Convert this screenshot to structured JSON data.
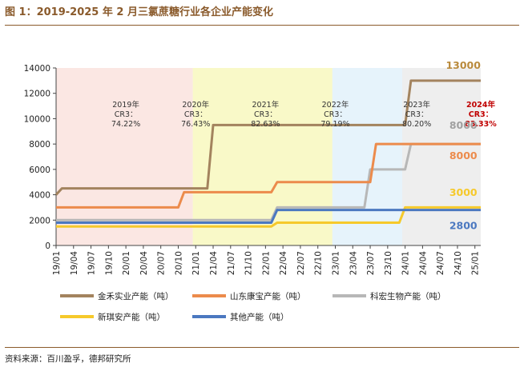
{
  "figure": {
    "title": "图 1：2019-2025 年 2 月三氯蔗糖行业各企业产能变化",
    "source": "资料来源：百川盈孚，德邦研究所"
  },
  "chart_data": {
    "type": "line",
    "x": [
      "19/01",
      "19/02",
      "19/03",
      "19/04",
      "19/05",
      "19/06",
      "19/07",
      "19/08",
      "19/09",
      "19/10",
      "19/11",
      "19/12",
      "20/01",
      "20/02",
      "20/03",
      "20/04",
      "20/05",
      "20/06",
      "20/07",
      "20/08",
      "20/09",
      "20/10",
      "20/11",
      "20/12",
      "21/01",
      "21/02",
      "21/03",
      "21/04",
      "21/05",
      "21/06",
      "21/07",
      "21/08",
      "21/09",
      "21/10",
      "21/11",
      "21/12",
      "22/01",
      "22/02",
      "22/03",
      "22/04",
      "22/05",
      "22/06",
      "22/07",
      "22/08",
      "22/09",
      "22/10",
      "22/11",
      "22/12",
      "23/01",
      "23/02",
      "23/03",
      "23/04",
      "23/05",
      "23/06",
      "23/07",
      "23/08",
      "23/09",
      "23/10",
      "23/11",
      "23/12",
      "24/01",
      "24/02",
      "24/03",
      "24/04",
      "24/05",
      "24/06",
      "24/07",
      "24/08",
      "24/09",
      "24/10",
      "24/11",
      "24/12",
      "25/01",
      "25/02"
    ],
    "xticklabels": [
      "19/01",
      "19/04",
      "19/07",
      "19/10",
      "20/01",
      "20/04",
      "20/07",
      "20/10",
      "21/01",
      "21/04",
      "21/07",
      "21/10",
      "22/01",
      "22/04",
      "22/07",
      "22/10",
      "23/01",
      "23/04",
      "23/07",
      "23/10",
      "24/01",
      "24/04",
      "24/07",
      "24/10",
      "25/01"
    ],
    "ylim": [
      0,
      14000
    ],
    "yticks": [
      0,
      2000,
      4000,
      6000,
      8000,
      10000,
      12000,
      14000
    ],
    "yticklabels": [
      "0",
      "2000",
      "4000",
      "6000",
      "8000",
      "10000",
      "12000",
      "14000"
    ],
    "grid": false,
    "legend_position": "bottom",
    "series": [
      {
        "name": "金禾实业产能（吨）",
        "color": "#a3835e",
        "values": [
          4000,
          4500,
          4500,
          4500,
          4500,
          4500,
          4500,
          4500,
          4500,
          4500,
          4500,
          4500,
          4500,
          4500,
          4500,
          4500,
          4500,
          4500,
          4500,
          4500,
          4500,
          4500,
          4500,
          4500,
          4500,
          4500,
          4500,
          9500,
          9500,
          9500,
          9500,
          9500,
          9500,
          9500,
          9500,
          9500,
          9500,
          9500,
          9500,
          9500,
          9500,
          9500,
          9500,
          9500,
          9500,
          9500,
          9500,
          9500,
          9500,
          9500,
          9500,
          9500,
          9500,
          9500,
          9500,
          9500,
          9500,
          9500,
          9500,
          9500,
          9500,
          13000,
          13000,
          13000,
          13000,
          13000,
          13000,
          13000,
          13000,
          13000,
          13000,
          13000,
          13000,
          13000
        ]
      },
      {
        "name": "山东康宝产能（吨）",
        "color": "#ec8b4c",
        "values": [
          3000,
          3000,
          3000,
          3000,
          3000,
          3000,
          3000,
          3000,
          3000,
          3000,
          3000,
          3000,
          3000,
          3000,
          3000,
          3000,
          3000,
          3000,
          3000,
          3000,
          3000,
          3000,
          4200,
          4200,
          4200,
          4200,
          4200,
          4200,
          4200,
          4200,
          4200,
          4200,
          4200,
          4200,
          4200,
          4200,
          4200,
          4200,
          5000,
          5000,
          5000,
          5000,
          5000,
          5000,
          5000,
          5000,
          5000,
          5000,
          5000,
          5000,
          5000,
          5000,
          5000,
          5000,
          5000,
          8000,
          8000,
          8000,
          8000,
          8000,
          8000,
          8000,
          8000,
          8000,
          8000,
          8000,
          8000,
          8000,
          8000,
          8000,
          8000,
          8000,
          8000,
          8000
        ]
      },
      {
        "name": "科宏生物产能（吨）",
        "color": "#b7b7b7",
        "values": [
          2000,
          2000,
          2000,
          2000,
          2000,
          2000,
          2000,
          2000,
          2000,
          2000,
          2000,
          2000,
          2000,
          2000,
          2000,
          2000,
          2000,
          2000,
          2000,
          2000,
          2000,
          2000,
          2000,
          2000,
          2000,
          2000,
          2000,
          2000,
          2000,
          2000,
          2000,
          2000,
          2000,
          2000,
          2000,
          2000,
          2000,
          2000,
          3000,
          3000,
          3000,
          3000,
          3000,
          3000,
          3000,
          3000,
          3000,
          3000,
          3000,
          3000,
          3000,
          3000,
          3000,
          3000,
          6000,
          6000,
          6000,
          6000,
          6000,
          6000,
          6000,
          8000,
          8000,
          8000,
          8000,
          8000,
          8000,
          8000,
          8000,
          8000,
          8000,
          8000,
          8000,
          8000
        ]
      },
      {
        "name": "新琪安产能（吨）",
        "color": "#f6c92b",
        "values": [
          1500,
          1500,
          1500,
          1500,
          1500,
          1500,
          1500,
          1500,
          1500,
          1500,
          1500,
          1500,
          1500,
          1500,
          1500,
          1500,
          1500,
          1500,
          1500,
          1500,
          1500,
          1500,
          1500,
          1500,
          1500,
          1500,
          1500,
          1500,
          1500,
          1500,
          1500,
          1500,
          1500,
          1500,
          1500,
          1500,
          1500,
          1500,
          1800,
          1800,
          1800,
          1800,
          1800,
          1800,
          1800,
          1800,
          1800,
          1800,
          1800,
          1800,
          1800,
          1800,
          1800,
          1800,
          1800,
          1800,
          1800,
          1800,
          1800,
          1800,
          3000,
          3000,
          3000,
          3000,
          3000,
          3000,
          3000,
          3000,
          3000,
          3000,
          3000,
          3000,
          3000,
          3000
        ]
      },
      {
        "name": "其他产能（吨）",
        "color": "#4b78c0",
        "values": [
          1800,
          1800,
          1800,
          1800,
          1800,
          1800,
          1800,
          1800,
          1800,
          1800,
          1800,
          1800,
          1800,
          1800,
          1800,
          1800,
          1800,
          1800,
          1800,
          1800,
          1800,
          1800,
          1800,
          1800,
          1800,
          1800,
          1800,
          1800,
          1800,
          1800,
          1800,
          1800,
          1800,
          1800,
          1800,
          1800,
          1800,
          1800,
          2800,
          2800,
          2800,
          2800,
          2800,
          2800,
          2800,
          2800,
          2800,
          2800,
          2800,
          2800,
          2800,
          2800,
          2800,
          2800,
          2800,
          2800,
          2800,
          2800,
          2800,
          2800,
          2800,
          2800,
          2800,
          2800,
          2800,
          2800,
          2800,
          2800,
          2800,
          2800,
          2800,
          2800,
          2800,
          2800
        ]
      }
    ],
    "shaded_periods": [
      {
        "from": "19/01",
        "to": "20/12",
        "color": "#fbe7e3"
      },
      {
        "from": "21/01",
        "to": "22/12",
        "color": "#f9f9c8"
      },
      {
        "from": "23/01",
        "to": "23/12",
        "color": "#e6f3fb"
      },
      {
        "from": "24/01",
        "to": "25/02",
        "color": "#eeeeee"
      }
    ],
    "annotations": [
      {
        "lines": [
          "2019年",
          "CR3：",
          "74.22%"
        ],
        "x": "20/01",
        "y": 10900,
        "color": "#333333",
        "bold": false
      },
      {
        "lines": [
          "2020年",
          "CR3：",
          "76.43%"
        ],
        "x": "21/01",
        "y": 10900,
        "color": "#333333",
        "bold": false
      },
      {
        "lines": [
          "2021年",
          "CR3：",
          "82.63%"
        ],
        "x": "22/01",
        "y": 10900,
        "color": "#333333",
        "bold": false
      },
      {
        "lines": [
          "2022年",
          "CR3：",
          "79.19%"
        ],
        "x": "23/01",
        "y": 10900,
        "color": "#333333",
        "bold": false
      },
      {
        "lines": [
          "2023年",
          "CR3：",
          "80.20%"
        ],
        "x": "24/03",
        "y": 10900,
        "color": "#333333",
        "bold": false
      },
      {
        "lines": [
          "2024年",
          "CR3：",
          "83.33%"
        ],
        "x": "25/02",
        "y": 10900,
        "color": "#c00000",
        "bold": true
      }
    ],
    "value_labels": [
      {
        "text": "13000",
        "x": "24/11",
        "y": 13950,
        "color": "#b98a3c"
      },
      {
        "text": "8000",
        "x": "24/11",
        "y": 9200,
        "color": "#a0a0a0"
      },
      {
        "text": "8000",
        "x": "24/11",
        "y": 6800,
        "color": "#ec8b4c"
      },
      {
        "text": "3000",
        "x": "24/11",
        "y": 3900,
        "color": "#f6c92b"
      },
      {
        "text": "2800",
        "x": "24/11",
        "y": 1300,
        "color": "#4b78c0"
      }
    ]
  }
}
